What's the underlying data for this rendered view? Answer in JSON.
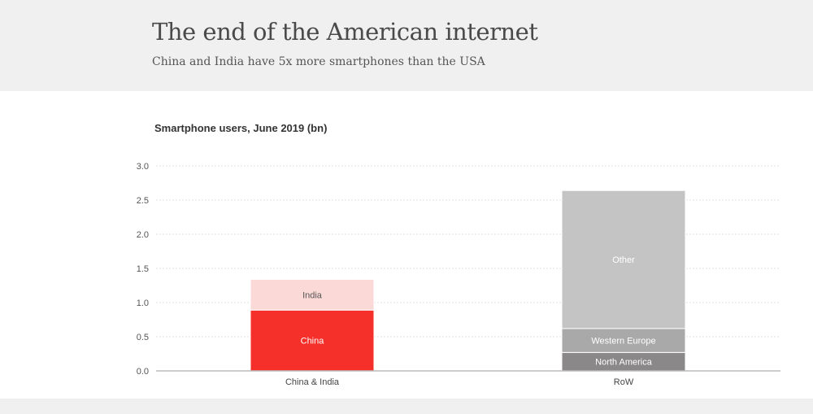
{
  "header": {
    "title": "The end of the American internet",
    "subtitle": "China and India have 5x more smartphones than the USA"
  },
  "chart_data": {
    "type": "bar",
    "stacked": true,
    "title": "Smartphone users, June 2019 (bn)",
    "categories": [
      "China & India",
      "RoW"
    ],
    "ylim": [
      0,
      3.0
    ],
    "yticks": [
      "0.0",
      "0.5",
      "1.0",
      "1.5",
      "2.0",
      "2.5",
      "3.0"
    ],
    "grid": true,
    "stacks": [
      {
        "category": "China & India",
        "segments": [
          {
            "name": "China",
            "value": 0.89,
            "color": "#f5302a",
            "label_color": "#ffffff"
          },
          {
            "name": "India",
            "value": 0.45,
            "color": "#fbd9d7",
            "label_color": "#555555"
          }
        ]
      },
      {
        "category": "RoW",
        "segments": [
          {
            "name": "North America",
            "value": 0.27,
            "color": "#8a8888",
            "label_color": "#ffffff"
          },
          {
            "name": "Western Europe",
            "value": 0.35,
            "color": "#a9a9a9",
            "label_color": "#ffffff"
          },
          {
            "name": "Other",
            "value": 2.02,
            "color": "#c4c4c4",
            "label_color": "#ffffff"
          }
        ]
      }
    ]
  }
}
